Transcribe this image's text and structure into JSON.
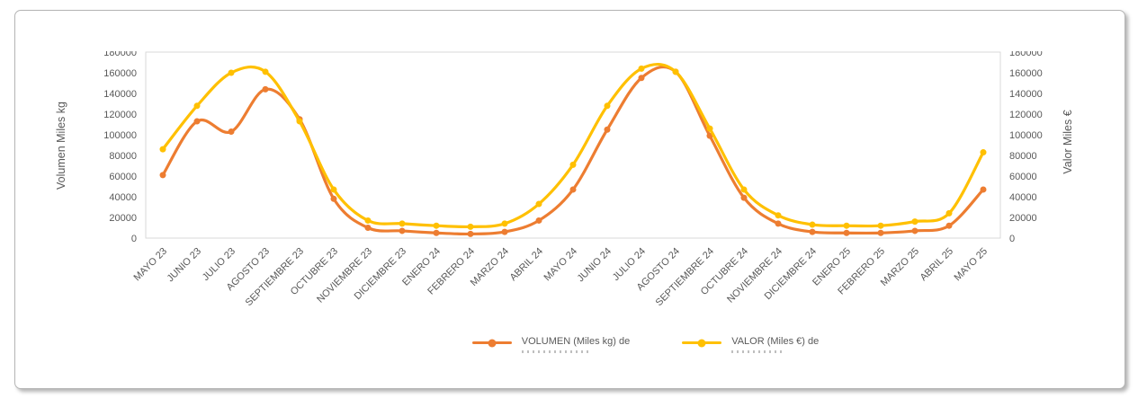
{
  "chart_data": {
    "type": "line",
    "smooth": true,
    "grid": false,
    "legend_position": "bottom",
    "x_label_rotation": 45,
    "categories": [
      "MAYO 23",
      "JUNIO 23",
      "JULIO 23",
      "AGOSTO 23",
      "SEPTIEMBRE 23",
      "OCTUBRE 23",
      "NOVIEMBRE 23",
      "DICIEMBRE 23",
      "ENERO 24",
      "FEBRERO 24",
      "MARZO 24",
      "ABRIL 24",
      "MAYO 24",
      "JUNIO 24",
      "JULIO 24",
      "AGOSTO 24",
      "SEPTIEMBRE 24",
      "OCTUBRE 24",
      "NOVIEMBRE 24",
      "DICIEMBRE 24",
      "ENERO 25",
      "FEBRERO 25",
      "MARZO 25",
      "ABRIL 25",
      "MAYO 25"
    ],
    "series": [
      {
        "id": "volumen",
        "name": "VOLUMEN (Miles kg) de",
        "color": "#ED7D31",
        "axis": "left",
        "values": [
          61000,
          113000,
          103000,
          144000,
          115000,
          38000,
          10000,
          7000,
          5000,
          4000,
          6000,
          17000,
          47000,
          105000,
          155000,
          161000,
          99000,
          39000,
          14000,
          6000,
          5000,
          5000,
          7000,
          12000,
          47000
        ]
      },
      {
        "id": "valor",
        "name": "VALOR (Miles €) de",
        "color": "#FFC000",
        "axis": "right",
        "values": [
          86000,
          128000,
          160000,
          161000,
          113000,
          47000,
          17000,
          14000,
          12000,
          11000,
          14000,
          33000,
          71000,
          128000,
          164000,
          161000,
          106000,
          47000,
          22000,
          13000,
          12000,
          12000,
          16000,
          24000,
          83000
        ]
      }
    ],
    "y_left": {
      "label": "Volumen Miles kg",
      "min": 0,
      "max": 180000,
      "step": 20000
    },
    "y_right": {
      "label": "Valor Miles €",
      "min": 0,
      "max": 180000,
      "step": 20000
    }
  }
}
